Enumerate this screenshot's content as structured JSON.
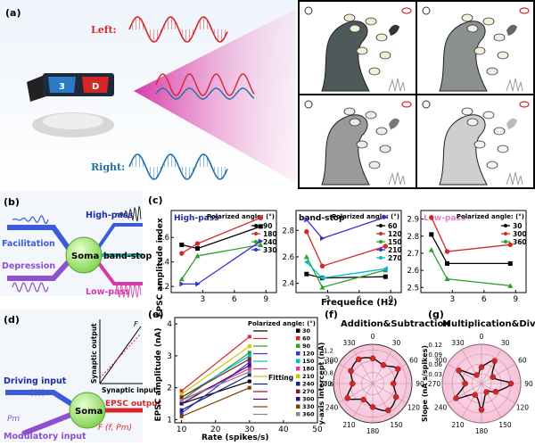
{
  "panel_a": {
    "label": "(a)",
    "left": "Left:",
    "right": "Right:",
    "lens_left": "3",
    "lens_right": "D",
    "colors": {
      "left": "#d62728",
      "right": "#1f6fa8",
      "beam": "#d63aa6"
    }
  },
  "panel_b": {
    "label": "(b)",
    "soma": "Soma",
    "facilitation": "Facilitation",
    "depression": "Depression",
    "high_pass": "High-pass",
    "band_stop": "band-stop",
    "low_pass": "Low-pass"
  },
  "panel_c": {
    "label": "(c)",
    "ylabel": "EPSC amplitude index",
    "xlabel": "Frequence (Hz)",
    "legend_title": "Polarized angle: (°)"
  },
  "panel_d": {
    "label": "(d)",
    "driving": "Driving input",
    "modulatory": "Modulatory input",
    "soma": "Soma",
    "epsc_output": "EPSC output",
    "synaptic_output": "Synaptic output",
    "synaptic_input": "Synaptic input",
    "f_out": "F (f, Pm)",
    "pm": "Pm",
    "f_label": "f",
    "F_label": "F"
  },
  "panel_e": {
    "label": "(e)",
    "ylabel": "EPSC amplitude (nA)",
    "xlabel": "Rate (spikes/s)",
    "legend_title": "Polarized angle: (°)",
    "fitting": "Fitting"
  },
  "panel_f": {
    "label": "(f)",
    "title": "Addition&Subtraction",
    "ylabel": "y-axis intercept (nA)",
    "angles": [
      "0",
      "30",
      "60",
      "90",
      "120",
      "150",
      "180",
      "210",
      "240",
      "270",
      "300",
      "330"
    ],
    "rticks": [
      "0.6",
      "0.8",
      "1.0",
      "1.2"
    ]
  },
  "panel_g": {
    "label": "(g)",
    "title": "Multiplication&Division",
    "ylabel": "Slope (nA s/spikes)",
    "angles": [
      "0",
      "30",
      "60",
      "90",
      "120",
      "150",
      "180",
      "210",
      "240",
      "270",
      "300",
      "330"
    ],
    "rticks": [
      "0.03",
      "0.06",
      "0.09",
      "0.12"
    ]
  },
  "chart_data": [
    {
      "type": "line",
      "panel": "c-high-pass",
      "title": "High-pass",
      "x_ticks": [
        "3",
        "6",
        "9"
      ],
      "ylim": [
        2.15,
        2.82
      ],
      "y_ticks": [
        "2.2",
        "2.4",
        "2.6"
      ],
      "series": [
        {
          "name": "90",
          "color": "#000000",
          "marker": "square",
          "x": [
            1,
            2.5,
            8.5
          ],
          "y": [
            2.54,
            2.51,
            2.69
          ]
        },
        {
          "name": "180",
          "color": "#d62728",
          "marker": "circle",
          "x": [
            1,
            2.5,
            8.5
          ],
          "y": [
            2.47,
            2.55,
            2.76
          ]
        },
        {
          "name": "240",
          "color": "#2ca02c",
          "marker": "triangle-up",
          "x": [
            1,
            2.5,
            8.5
          ],
          "y": [
            2.26,
            2.45,
            2.54
          ]
        },
        {
          "name": "330",
          "color": "#3a2fd0",
          "marker": "triangle-right",
          "x": [
            1,
            2.5,
            8.5
          ],
          "y": [
            2.22,
            2.22,
            2.57
          ]
        }
      ]
    },
    {
      "type": "line",
      "panel": "c-band-stop",
      "title": "band-stop",
      "x_ticks": [
        "3",
        "6",
        "9"
      ],
      "ylim": [
        2.33,
        2.95
      ],
      "y_ticks": [
        "2.4",
        "2.6",
        "2.8"
      ],
      "series": [
        {
          "name": "60",
          "color": "#000000",
          "marker": "square",
          "x": [
            1,
            2.5,
            8.5
          ],
          "y": [
            2.47,
            2.44,
            2.45
          ]
        },
        {
          "name": "120",
          "color": "#d62728",
          "marker": "circle",
          "x": [
            1,
            2.5,
            8.5
          ],
          "y": [
            2.79,
            2.53,
            2.68
          ]
        },
        {
          "name": "150",
          "color": "#2ca02c",
          "marker": "triangle-up",
          "x": [
            1,
            2.5,
            8.5
          ],
          "y": [
            2.6,
            2.37,
            2.5
          ]
        },
        {
          "name": "210",
          "color": "#3a2fd0",
          "marker": "triangle-right",
          "x": [
            1,
            2.5,
            8.5
          ],
          "y": [
            2.88,
            2.74,
            2.9
          ]
        },
        {
          "name": "270",
          "color": "#00bcd4",
          "marker": "triangle-left",
          "x": [
            1,
            2.5,
            8.5
          ],
          "y": [
            2.56,
            2.44,
            2.51
          ]
        }
      ]
    },
    {
      "type": "line",
      "panel": "c-low-pass",
      "title": "Low-pass",
      "x_ticks": [
        "3",
        "6",
        "9"
      ],
      "ylim": [
        2.47,
        2.95
      ],
      "y_ticks": [
        "2.5",
        "2.6",
        "2.7",
        "2.8",
        "2.9"
      ],
      "series": [
        {
          "name": "30",
          "color": "#000000",
          "marker": "square",
          "x": [
            1,
            2.5,
            8.5
          ],
          "y": [
            2.81,
            2.64,
            2.64
          ]
        },
        {
          "name": "300",
          "color": "#d62728",
          "marker": "circle",
          "x": [
            1,
            2.5,
            8.5
          ],
          "y": [
            2.91,
            2.71,
            2.75
          ]
        },
        {
          "name": "360",
          "color": "#2ca02c",
          "marker": "triangle-up",
          "x": [
            1,
            2.5,
            8.5
          ],
          "y": [
            2.72,
            2.55,
            2.51
          ]
        }
      ]
    },
    {
      "type": "line",
      "panel": "e",
      "xlim": [
        8,
        50
      ],
      "ylim": [
        0.9,
        4.2
      ],
      "x_ticks": [
        "10",
        "20",
        "30",
        "40",
        "50"
      ],
      "y_ticks": [
        "1",
        "2",
        "3",
        "4"
      ],
      "series": [
        {
          "name": "30",
          "color": "#000000",
          "x": [
            10,
            30
          ],
          "y": [
            1.5,
            2.2
          ]
        },
        {
          "name": "60",
          "color": "#d62728",
          "x": [
            10,
            30
          ],
          "y": [
            1.9,
            3.6
          ]
        },
        {
          "name": "90",
          "color": "#2ca02c",
          "x": [
            10,
            30
          ],
          "y": [
            1.6,
            3.1
          ]
        },
        {
          "name": "120",
          "color": "#3a2fd0",
          "x": [
            10,
            30
          ],
          "y": [
            1.2,
            2.8
          ]
        },
        {
          "name": "150",
          "color": "#00bcd4",
          "x": [
            10,
            30
          ],
          "y": [
            1.7,
            3.0
          ]
        },
        {
          "name": "180",
          "color": "#d63aa6",
          "x": [
            10,
            30
          ],
          "y": [
            1.6,
            2.6
          ]
        },
        {
          "name": "210",
          "color": "#c9c900",
          "x": [
            10,
            30
          ],
          "y": [
            1.8,
            3.3
          ]
        },
        {
          "name": "240",
          "color": "#1a237e",
          "x": [
            10,
            30
          ],
          "y": [
            1.3,
            2.4
          ]
        },
        {
          "name": "270",
          "color": "#8b1a1a",
          "x": [
            10,
            30
          ],
          "y": [
            1.7,
            2.9
          ]
        },
        {
          "name": "300",
          "color": "#4b0082",
          "x": [
            10,
            30
          ],
          "y": [
            1.5,
            2.7
          ]
        },
        {
          "name": "330",
          "color": "#7b3f00",
          "x": [
            10,
            30
          ],
          "y": [
            1.1,
            2.0
          ]
        },
        {
          "name": "360",
          "color": "#888888",
          "x": [
            10,
            30
          ],
          "y": [
            1.6,
            2.5
          ]
        }
      ]
    },
    {
      "type": "scatter",
      "panel": "f-polar",
      "r_range": [
        0.6,
        1.3
      ],
      "theta": [
        0,
        30,
        60,
        90,
        120,
        150,
        180,
        210,
        240,
        270,
        300,
        330
      ],
      "r": [
        1.05,
        0.98,
        1.12,
        0.97,
        1.08,
        1.15,
        1.02,
        0.93,
        1.12,
        0.96,
        1.05,
        1.1
      ]
    },
    {
      "type": "scatter",
      "panel": "g-polar",
      "r_range": [
        0.0,
        0.12
      ],
      "theta": [
        0,
        30,
        60,
        90,
        120,
        150,
        180,
        210,
        240,
        270,
        300,
        330
      ],
      "r": [
        0.05,
        0.08,
        0.04,
        0.09,
        0.05,
        0.03,
        0.08,
        0.04,
        0.09,
        0.05,
        0.08,
        0.03
      ]
    }
  ]
}
